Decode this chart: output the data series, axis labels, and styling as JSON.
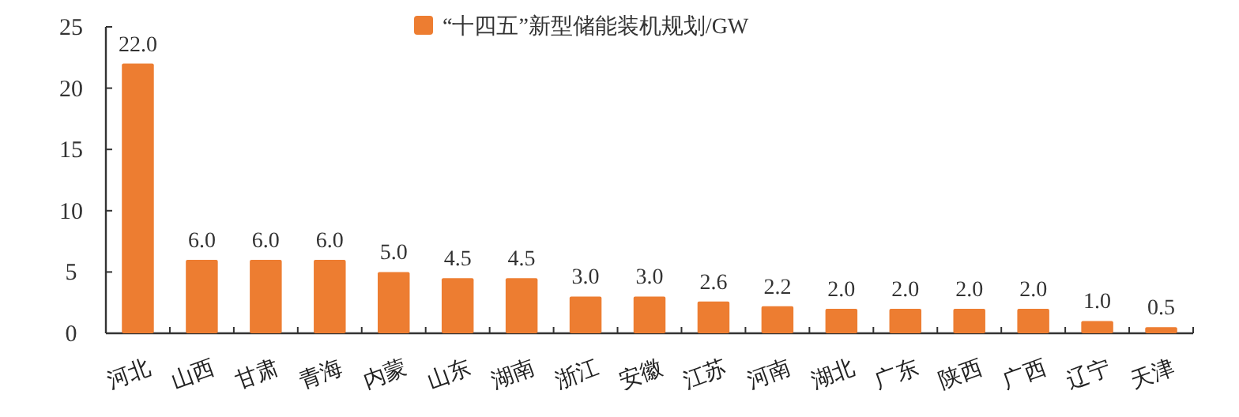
{
  "chart_data": {
    "type": "bar",
    "categories": [
      "河北",
      "山西",
      "甘肃",
      "青海",
      "内蒙",
      "山东",
      "湖南",
      "浙江",
      "安徽",
      "江苏",
      "河南",
      "湖北",
      "广东",
      "陕西",
      "广西",
      "辽宁",
      "天津"
    ],
    "series": [
      {
        "name": "“十四五”新型储能装机规划/GW",
        "color": "#ed7d31",
        "values": [
          22.0,
          6.0,
          6.0,
          6.0,
          5.0,
          4.5,
          4.5,
          3.0,
          3.0,
          2.6,
          2.2,
          2.0,
          2.0,
          2.0,
          2.0,
          1.0,
          0.5
        ],
        "value_labels": [
          "22.0",
          "6.0",
          "6.0",
          "6.0",
          "5.0",
          "4.5",
          "4.5",
          "3.0",
          "3.0",
          "2.6",
          "2.2",
          "2.0",
          "2.0",
          "2.0",
          "2.0",
          "1.0",
          "0.5"
        ]
      }
    ],
    "ylim": [
      0,
      25
    ],
    "yticks": [
      0,
      5,
      10,
      15,
      20,
      25
    ],
    "legend": "top",
    "grid": false
  }
}
